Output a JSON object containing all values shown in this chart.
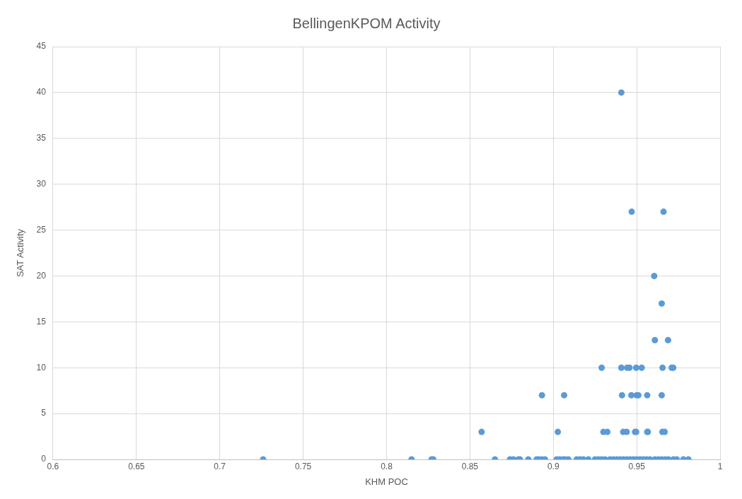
{
  "chart_data": {
    "type": "scatter",
    "title": "BellingenKPOM Activity",
    "xlabel": "KHM POC",
    "ylabel": "SAT Activity",
    "xlim": [
      0.6,
      1
    ],
    "xticks": [
      0.6,
      0.65,
      0.7,
      0.75,
      0.8,
      0.85,
      0.9,
      0.95,
      1
    ],
    "ylim": [
      0,
      45
    ],
    "yticks": [
      0,
      5,
      10,
      15,
      20,
      25,
      30,
      35,
      40,
      45
    ],
    "grid": true,
    "legend": false,
    "marker": "circle",
    "series": [
      {
        "color": "#5b9bd5",
        "x": [
          0.9408,
          0.947,
          0.9661,
          0.9605,
          0.965,
          0.9609,
          0.9688,
          0.929,
          0.9408,
          0.9443,
          0.9457,
          0.9497,
          0.953,
          0.9655,
          0.971,
          0.9719,
          0.8932,
          0.9065,
          0.9412,
          0.9468,
          0.95,
          0.951,
          0.9563,
          0.965,
          0.857,
          0.9027,
          0.93,
          0.9324,
          0.9419,
          0.944,
          0.949,
          0.9497,
          0.9563,
          0.9567,
          0.9654,
          0.9668,
          0.726,
          0.815,
          0.827,
          0.828,
          0.865,
          0.874,
          0.876,
          0.879,
          0.88,
          0.885,
          0.89,
          0.891,
          0.893,
          0.895,
          0.902,
          0.904,
          0.906,
          0.907,
          0.909,
          0.914,
          0.916,
          0.918,
          0.921,
          0.925,
          0.927,
          0.929,
          0.931,
          0.934,
          0.936,
          0.938,
          0.94,
          0.942,
          0.944,
          0.946,
          0.948,
          0.95,
          0.952,
          0.954,
          0.956,
          0.958,
          0.961,
          0.963,
          0.965,
          0.967,
          0.969,
          0.972,
          0.974,
          0.978,
          0.981
        ],
        "values": [
          40,
          27,
          27,
          20,
          17,
          13,
          13,
          10,
          10,
          10,
          10,
          10,
          10,
          10,
          10,
          10,
          7,
          7,
          7,
          7,
          7,
          7,
          7,
          7,
          3,
          3,
          3,
          3,
          3,
          3,
          3,
          3,
          3,
          3,
          3,
          3,
          0,
          0,
          0,
          0,
          0,
          0,
          0,
          0,
          0,
          0,
          0,
          0,
          0,
          0,
          0,
          0,
          0,
          0,
          0,
          0,
          0,
          0,
          0,
          0,
          0,
          0,
          0,
          0,
          0,
          0,
          0,
          0,
          0,
          0,
          0,
          0,
          0,
          0,
          0,
          0,
          0,
          0,
          0,
          0,
          0,
          0,
          0,
          0,
          0
        ]
      }
    ]
  }
}
